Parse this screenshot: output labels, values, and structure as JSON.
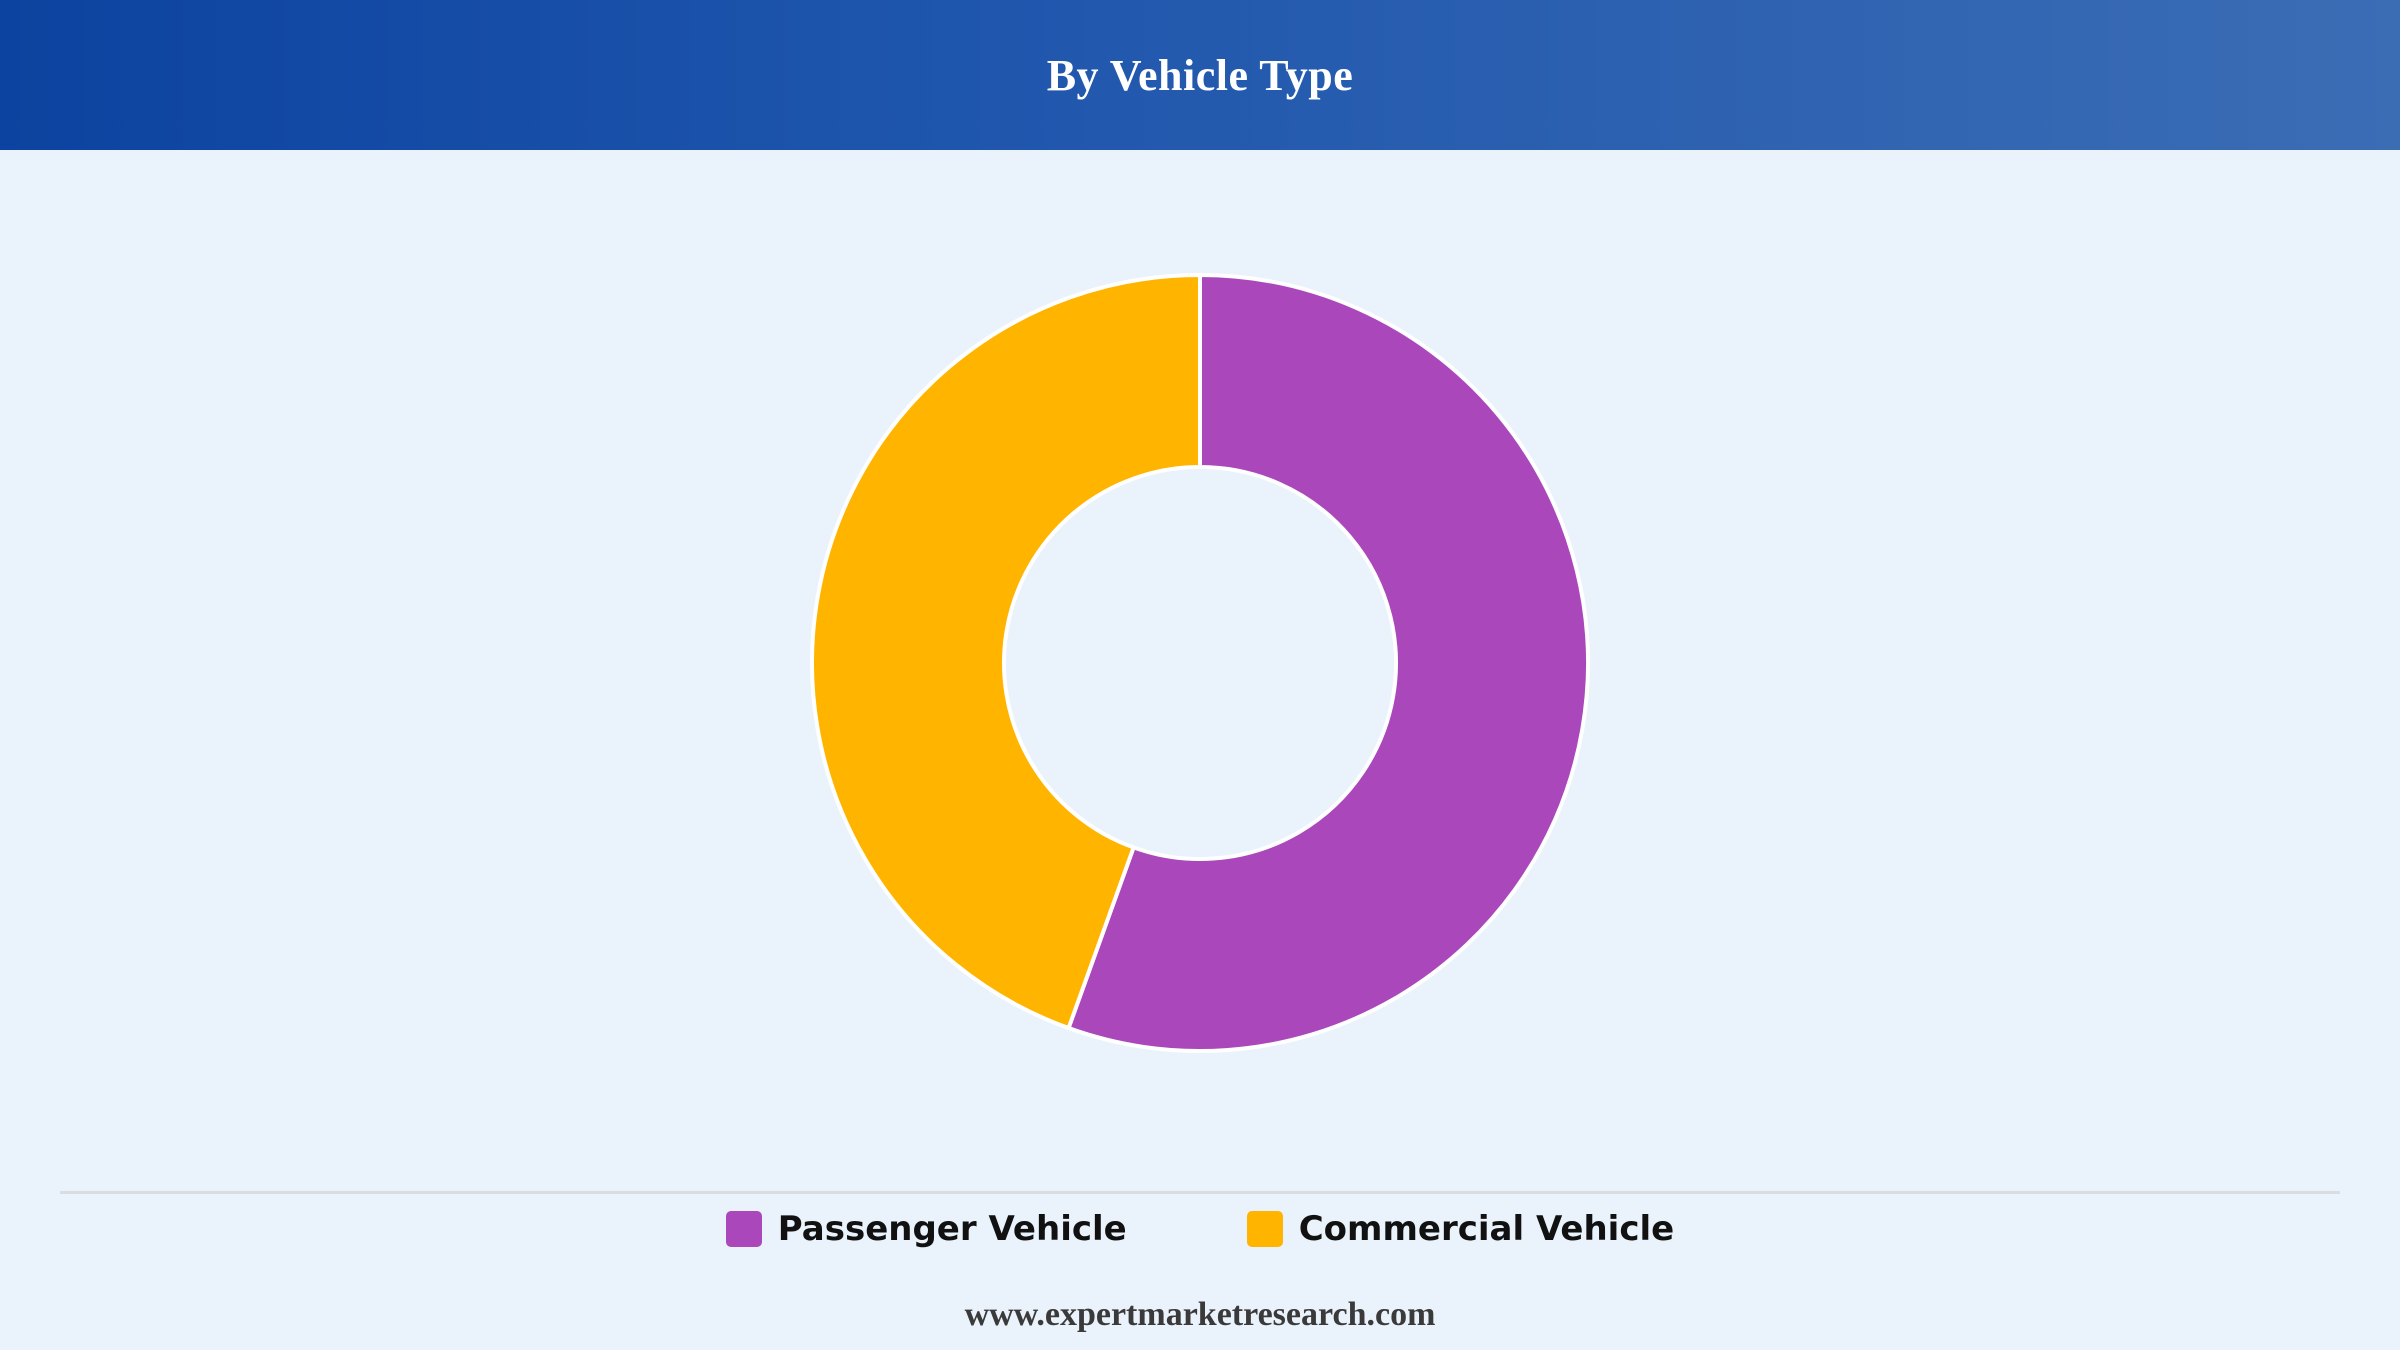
{
  "header": {
    "title": "By Vehicle Type"
  },
  "chart_data": {
    "type": "pie",
    "donut": true,
    "title": "By Vehicle Type",
    "categories": [
      "Passenger Vehicle",
      "Commercial Vehicle"
    ],
    "values": [
      55.5,
      44.5
    ],
    "colors": [
      "#a947bb",
      "#ffb400"
    ],
    "start_angle_deg": 0,
    "direction": "clockwise",
    "legend_position": "bottom"
  },
  "legend": {
    "items": [
      {
        "label": "Passenger Vehicle",
        "color": "#a947bb"
      },
      {
        "label": "Commercial Vehicle",
        "color": "#ffb400"
      }
    ]
  },
  "footer": {
    "text": "www.expertmarketresearch.com"
  }
}
